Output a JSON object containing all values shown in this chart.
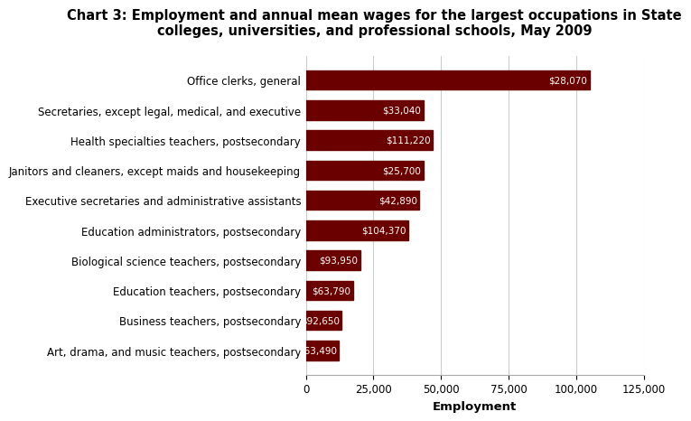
{
  "title": "Chart 3: Employment and annual mean wages for the largest occupations in State\ncolleges, universities, and professional schools, May 2009",
  "categories": [
    "Art, drama, and music teachers, postsecondary",
    "Business teachers, postsecondary",
    "Education teachers, postsecondary",
    "Biological science teachers, postsecondary",
    "Education administrators, postsecondary",
    "Executive secretaries and administrative assistants",
    "Janitors and cleaners, except maids and housekeeping",
    "Health specialties teachers, postsecondary",
    "Secretaries, except legal, medical, and executive",
    "Office clerks, general"
  ],
  "employment": [
    12300,
    13200,
    17400,
    20100,
    38000,
    42000,
    43500,
    47000,
    43500,
    105000
  ],
  "wages": [
    "$63,490",
    "$92,650",
    "$63,790",
    "$93,950",
    "$104,370",
    "$42,890",
    "$25,700",
    "$111,220",
    "$33,040",
    "$28,070"
  ],
  "bar_color": "#6b0000",
  "xlabel": "Employment",
  "xlim": [
    0,
    125000
  ],
  "xticks": [
    0,
    25000,
    50000,
    75000,
    100000,
    125000
  ],
  "background_color": "#ffffff",
  "title_fontsize": 10.5,
  "label_fontsize": 8.5,
  "tick_fontsize": 8.5
}
